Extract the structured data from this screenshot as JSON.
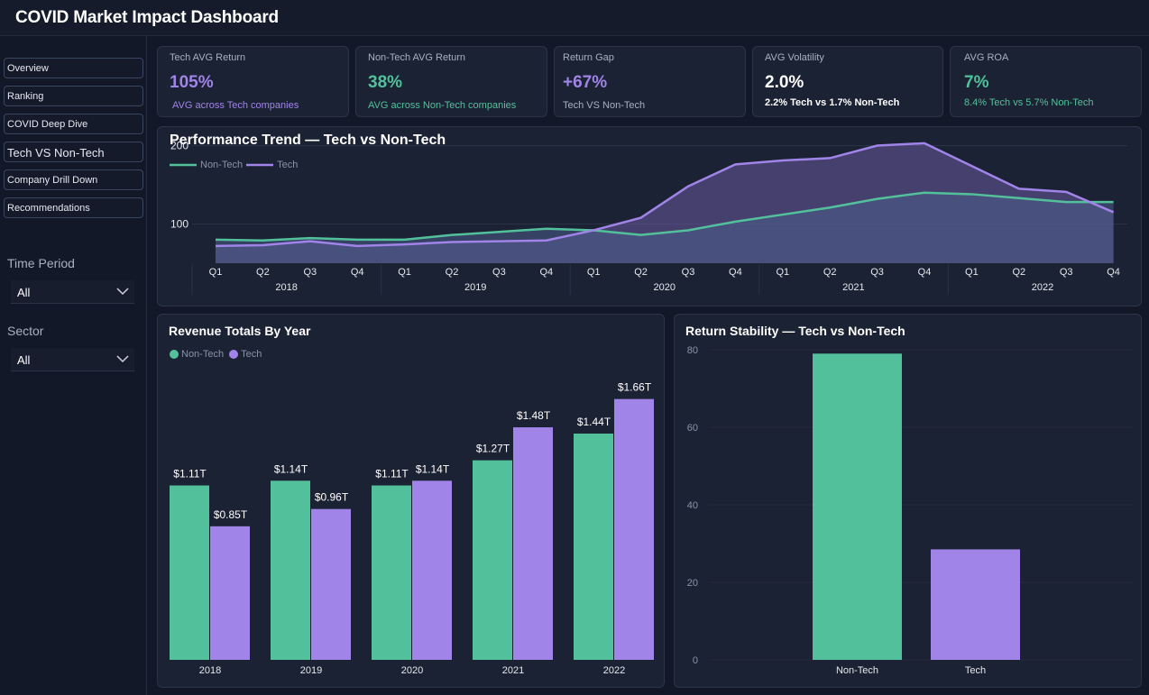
{
  "app": {
    "title": "COVID Market Impact Dashboard"
  },
  "nav": {
    "items": [
      {
        "label": "Overview"
      },
      {
        "label": "Ranking"
      },
      {
        "label": "COVID Deep Dive"
      },
      {
        "label": "Tech VS Non-Tech"
      },
      {
        "label": "Company Drill Down"
      },
      {
        "label": "Recommendations"
      }
    ],
    "active": "Tech VS Non-Tech"
  },
  "filters": {
    "time_period": {
      "label": "Time Period",
      "value": "All"
    },
    "sector": {
      "label": "Sector",
      "value": "All"
    }
  },
  "colors": {
    "tech": "#a084e8",
    "non_tech": "#52c19b",
    "background": "#121827",
    "card": "#1b2233"
  },
  "kpis": [
    {
      "title": "Tech AVG Return",
      "value": "105%",
      "sub": "AVG across Tech companies",
      "value_color": "#a084e8",
      "sub_color": "#a084e8"
    },
    {
      "title": "Non-Tech AVG Return",
      "value": "38%",
      "sub": "AVG across Non-Tech companies",
      "value_color": "#52c19b",
      "sub_color": "#52c19b"
    },
    {
      "title": "Return Gap",
      "value": "+67%",
      "sub": "Tech VS Non-Tech",
      "value_color": "#a084e8",
      "sub_color": "#a9b0c0"
    },
    {
      "title": "AVG Volatility",
      "value": "2.0%",
      "sub": "2.2% Tech vs 1.7% Non-Tech",
      "value_color": "#ffffff",
      "sub_color": "#ffffff"
    },
    {
      "title": "AVG ROA",
      "value": "7%",
      "sub": "8.4% Tech vs 5.7% Non-Tech",
      "value_color": "#52c19b",
      "sub_color": "#52c19b"
    }
  ],
  "chart_data": [
    {
      "type": "area",
      "title": "Performance Trend — Tech vs Non-Tech",
      "legend_position": "top-left",
      "quarters": [
        "Q1",
        "Q2",
        "Q3",
        "Q4",
        "Q1",
        "Q2",
        "Q3",
        "Q4",
        "Q1",
        "Q2",
        "Q3",
        "Q4",
        "Q1",
        "Q2",
        "Q3",
        "Q4",
        "Q1",
        "Q2",
        "Q3",
        "Q4"
      ],
      "years": [
        "2018",
        "2019",
        "2020",
        "2021",
        "2022"
      ],
      "y_ticks": [
        100,
        200
      ],
      "ylim": [
        50,
        250
      ],
      "series": [
        {
          "name": "Non-Tech",
          "values": [
            80,
            79,
            82,
            80,
            80,
            86,
            90,
            94,
            92,
            86,
            92,
            103,
            112,
            121,
            132,
            140,
            138,
            133,
            128,
            128
          ]
        },
        {
          "name": "Tech",
          "values": [
            72,
            73,
            78,
            72,
            74,
            77,
            78,
            79,
            92,
            108,
            148,
            176,
            181,
            184,
            200,
            203,
            174,
            145,
            141,
            115
          ]
        }
      ]
    },
    {
      "type": "bar",
      "title": "Revenue Totals By Year",
      "legend_position": "top-left",
      "categories": [
        "2018",
        "2019",
        "2020",
        "2021",
        "2022"
      ],
      "ylim": [
        0,
        1.8
      ],
      "series": [
        {
          "name": "Non-Tech",
          "values": [
            1.11,
            1.14,
            1.11,
            1.27,
            1.44
          ],
          "labels": [
            "$1.11T",
            "$1.14T",
            "$1.11T",
            "$1.27T",
            "$1.44T"
          ]
        },
        {
          "name": "Tech",
          "values": [
            0.85,
            0.96,
            1.14,
            1.48,
            1.66
          ],
          "labels": [
            "$0.85T",
            "$0.96T",
            "$1.14T",
            "$1.48T",
            "$1.66T"
          ]
        }
      ]
    },
    {
      "type": "bar",
      "title": "Return Stability — Tech vs Non-Tech",
      "categories": [
        "Non-Tech",
        "Tech"
      ],
      "values": [
        79,
        28.5
      ],
      "y_ticks": [
        0,
        20,
        40,
        60,
        80
      ],
      "ylim": [
        0,
        80
      ],
      "grid": true
    }
  ]
}
